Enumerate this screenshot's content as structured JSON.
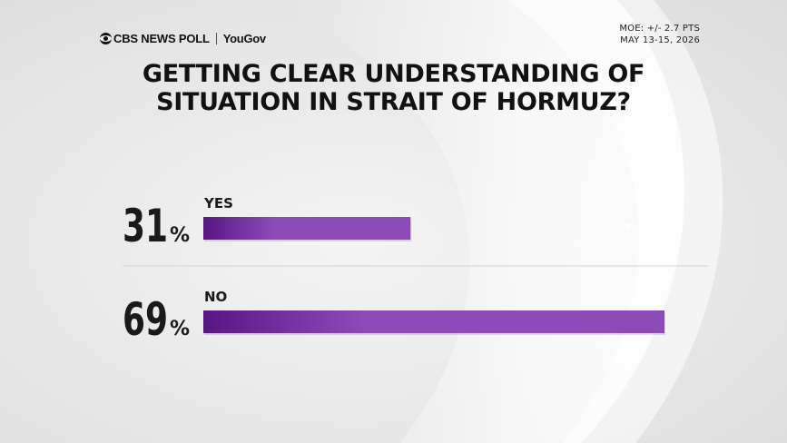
{
  "brand": {
    "network": "CBS NEWS POLL",
    "partner": "YouGov"
  },
  "meta": {
    "moe": "MOE: +/- 2.7 PTS",
    "dates": "MAY 13-15, 2026"
  },
  "title_lines": [
    "GETTING CLEAR UNDERSTANDING OF",
    "SITUATION IN STRAIT OF HORMUZ?"
  ],
  "colors": {
    "bar_start": "#5a1585",
    "bar_end": "#8e4bb8",
    "text": "#1a1a1a",
    "background": "#ececec"
  },
  "chart_data": {
    "type": "bar",
    "orientation": "horizontal",
    "title": "GETTING CLEAR UNDERSTANDING OF SITUATION IN STRAIT OF HORMUZ?",
    "categories": [
      "YES",
      "NO"
    ],
    "values": [
      31,
      69
    ],
    "unit": "%",
    "xlim": [
      0,
      69
    ],
    "grid": false,
    "legend": "none"
  }
}
